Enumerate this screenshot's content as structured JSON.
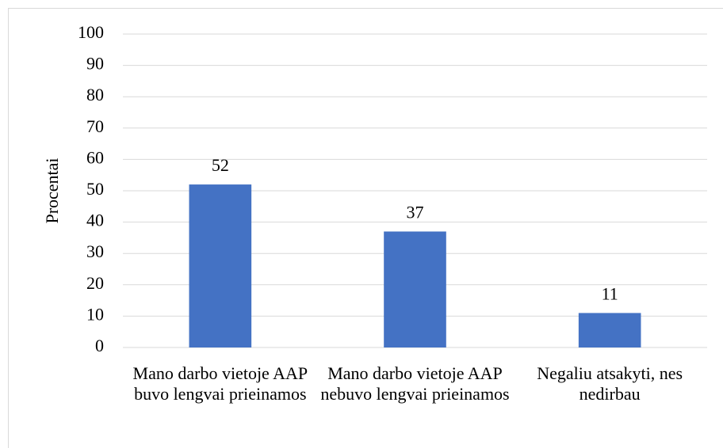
{
  "chart_data": {
    "type": "bar",
    "y_label": "Procentai",
    "categories": [
      "Mano darbo vietoje AAP buvo lengvai prieinamos",
      "Mano darbo vietoje AAP nebuvo lengvai prieinamos",
      "Negaliu atsakyti, nes nedirbau"
    ],
    "values": [
      52,
      37,
      11
    ],
    "color": "#4472c4",
    "ylim": [
      0,
      100
    ],
    "yticks": [
      0,
      10,
      20,
      30,
      40,
      50,
      60,
      70,
      80,
      90,
      100
    ],
    "grid": true,
    "data_labels": true
  }
}
